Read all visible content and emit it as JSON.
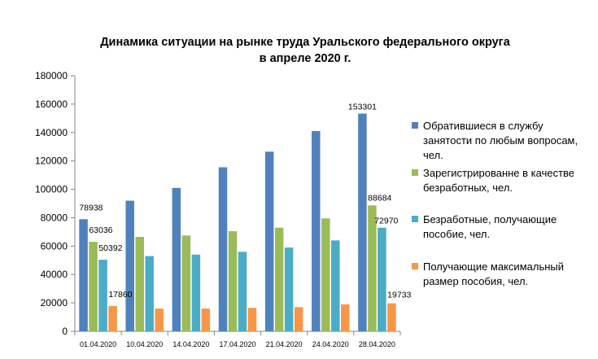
{
  "chart_data": {
    "type": "bar",
    "title": "Динамика ситуации  на рынке труда Уральского федерального округа",
    "subtitle": "в апреле 2020 г.",
    "categories": [
      "01.04.2020",
      "10.04.2020",
      "14.04.2020",
      "17.04.2020",
      "21.04.2020",
      "24.04.2020",
      "28.04.2020"
    ],
    "series": [
      {
        "name": "Обратившиеся в службу занятости по любым вопросам, чел.",
        "legend_lines": [
          "Обратившиеся в службу",
          "занятости по любым вопросам,",
          "чел."
        ],
        "color": "#4F81BD",
        "values": [
          78938,
          92000,
          101000,
          115500,
          126500,
          141000,
          153301
        ]
      },
      {
        "name": "Зарегистрированне в качестве безработных, чел.",
        "legend_lines": [
          "Зарегистрированне в качестве",
          "безработных, чел."
        ],
        "color": "#9BBB59",
        "values": [
          63036,
          66500,
          67500,
          70500,
          73000,
          79500,
          88684
        ]
      },
      {
        "name": "Безработные, получающие пособие, чел.",
        "legend_lines": [
          "Безработные, получающие",
          "пособие, чел."
        ],
        "color": "#4BACC6",
        "values": [
          50392,
          53000,
          54000,
          56000,
          59000,
          64000,
          72970
        ]
      },
      {
        "name": "Получающие максимальный размер пособия, чел.",
        "legend_lines": [
          "Получающие максимальный",
          "размер пособия, чел."
        ],
        "color": "#F79646",
        "values": [
          17860,
          16000,
          16000,
          16500,
          17000,
          19000,
          19733
        ]
      }
    ],
    "data_labels": [
      {
        "series": 0,
        "category": 0,
        "text": "78938"
      },
      {
        "series": 1,
        "category": 0,
        "text": "63036"
      },
      {
        "series": 2,
        "category": 0,
        "text": "50392"
      },
      {
        "series": 3,
        "category": 0,
        "text": "17860"
      },
      {
        "series": 0,
        "category": 6,
        "text": "153301"
      },
      {
        "series": 1,
        "category": 6,
        "text": "88684"
      },
      {
        "series": 2,
        "category": 6,
        "text": "72970"
      },
      {
        "series": 3,
        "category": 6,
        "text": "19733"
      }
    ],
    "yticks": [
      "0",
      "20000",
      "40000",
      "60000",
      "80000",
      "100000",
      "120000",
      "140000",
      "160000",
      "180000"
    ],
    "ylim": [
      0,
      180000
    ],
    "grid": false,
    "legend_position": "right"
  }
}
